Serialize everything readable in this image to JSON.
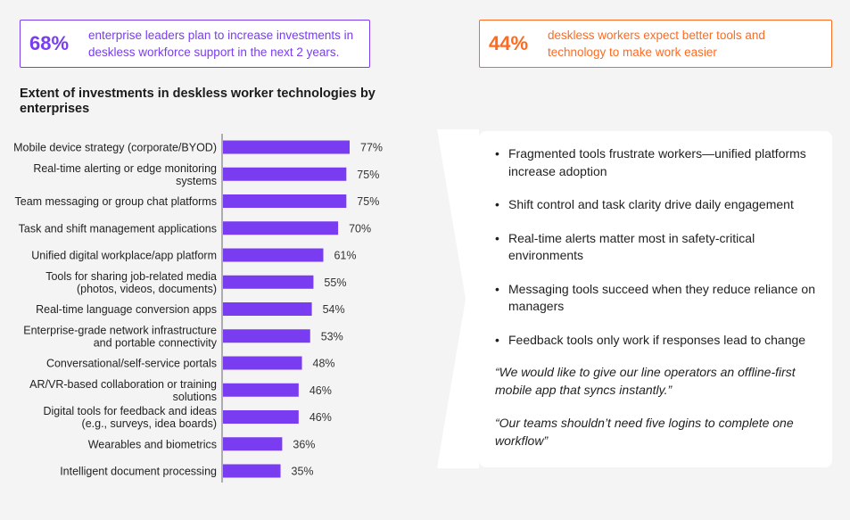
{
  "stats": [
    {
      "value": "68%",
      "text": "enterprise leaders plan to increase investments in deskless workforce support in the next 2 years.",
      "color": "#7a3cf0"
    },
    {
      "value": "44%",
      "text": "deskless workers expect better tools and technology to make work easier",
      "color": "#ff6a1f"
    }
  ],
  "chart_title": "Extent of investments in deskless worker technologies by enterprises",
  "chart_data": {
    "type": "bar",
    "orientation": "horizontal",
    "title": "Extent of investments in deskless worker technologies by enterprises",
    "categories": [
      "Mobile device strategy (corporate/BYOD)",
      "Real-time alerting or edge monitoring systems",
      "Team messaging or group chat platforms",
      "Task and shift management applications",
      "Unified digital workplace/app platform",
      "Tools for sharing job-related media (photos, videos, documents)",
      "Real-time language conversion apps",
      "Enterprise-grade network infrastructure and portable connectivity",
      "Conversational/self-service portals",
      "AR/VR-based collaboration or training solutions",
      "Digital tools for feedback and ideas (e.g., surveys, idea boards)",
      "Wearables and biometrics",
      "Intelligent document processing"
    ],
    "label_lines": [
      [
        "Mobile device strategy (corporate/BYOD)"
      ],
      [
        "Real-time alerting or edge monitoring",
        "systems"
      ],
      [
        "Team messaging or group chat platforms"
      ],
      [
        "Task and shift management applications"
      ],
      [
        "Unified digital workplace/app platform"
      ],
      [
        "Tools for sharing job-related media",
        "(photos, videos, documents)"
      ],
      [
        "Real-time language conversion apps"
      ],
      [
        "Enterprise-grade network infrastructure",
        "and portable connectivity"
      ],
      [
        "Conversational/self-service portals"
      ],
      [
        "AR/VR-based collaboration or training",
        "solutions"
      ],
      [
        "Digital tools for feedback and ideas",
        "(e.g., surveys, idea boards)"
      ],
      [
        "Wearables and biometrics"
      ],
      [
        "Intelligent document processing"
      ]
    ],
    "values": [
      77,
      75,
      75,
      70,
      61,
      55,
      54,
      53,
      48,
      46,
      46,
      36,
      35
    ],
    "value_labels": [
      "77%",
      "75%",
      "75%",
      "70%",
      "61%",
      "55%",
      "54%",
      "53%",
      "48%",
      "46%",
      "46%",
      "36%",
      "35%"
    ],
    "xlim": [
      0,
      100
    ],
    "bar_color": "#7a3cf0",
    "grid": false
  },
  "takeaways": [
    "Fragmented tools frustrate workers—unified platforms increase adoption",
    "Shift control and task clarity drive daily engagement",
    "Real-time alerts matter most in safety-critical environments",
    "Messaging tools succeed when they reduce reliance on managers",
    "Feedback tools only work if responses lead to change"
  ],
  "quotes": [
    "“We would like to give our line operators an offline-first mobile app that syncs instantly.”",
    "“Our teams shouldn’t need five logins to complete one workflow”"
  ]
}
